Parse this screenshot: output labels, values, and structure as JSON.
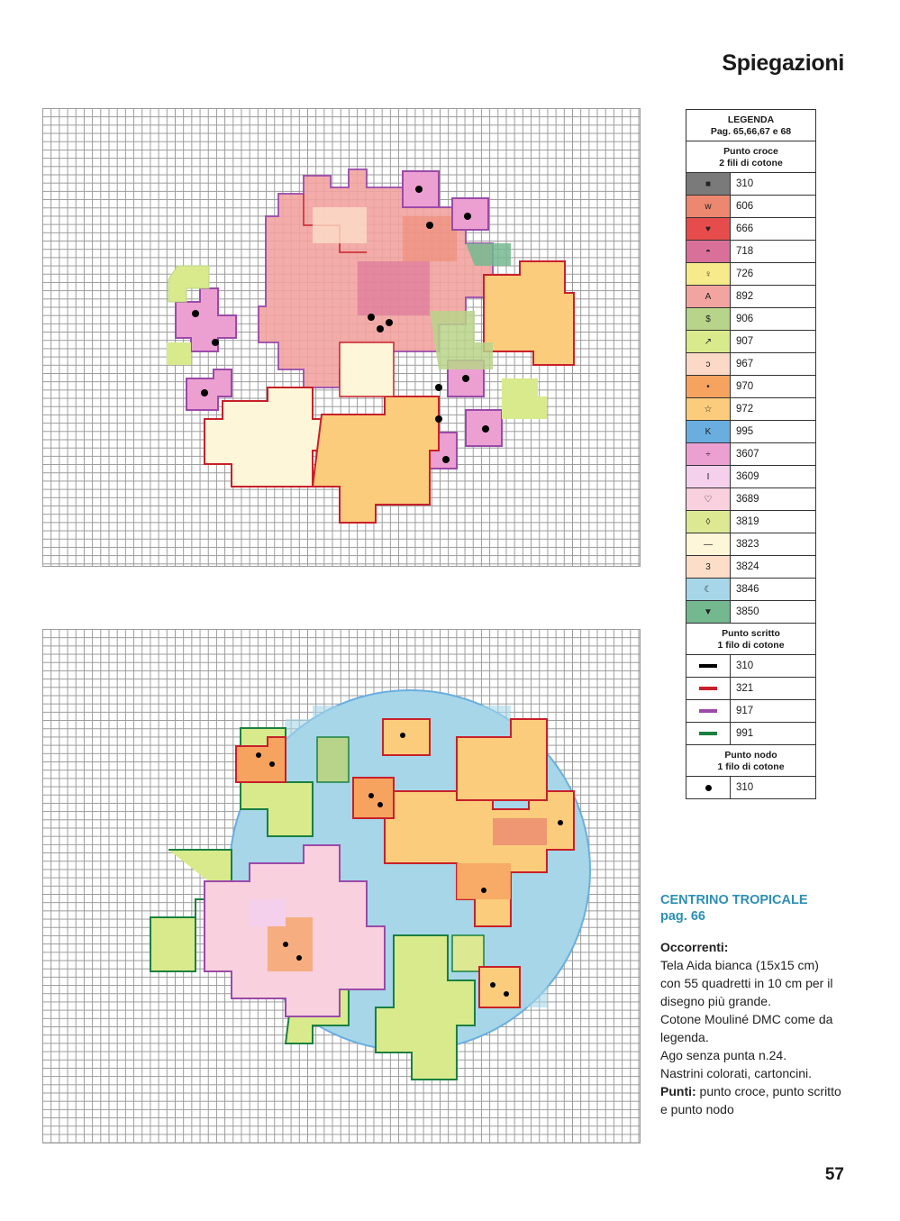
{
  "header": {
    "title": "Spiegazioni"
  },
  "legend": {
    "title": "LEGENDA",
    "pages": "Pag. 65,66,67 e 68",
    "cross_stitch": {
      "title": "Punto croce",
      "subtitle": "2 fili di cotone"
    },
    "cross_items": [
      {
        "symbol": "■",
        "code": "310",
        "color": "#7a7a7a"
      },
      {
        "symbol": "w",
        "code": "606",
        "color": "#ec8870"
      },
      {
        "symbol": "♥",
        "code": "666",
        "color": "#e74c4c"
      },
      {
        "symbol": "◓",
        "code": "718",
        "color": "#d9709a"
      },
      {
        "symbol": "♀",
        "code": "726",
        "color": "#f6ea8a"
      },
      {
        "symbol": "A",
        "code": "892",
        "color": "#f2a4a0"
      },
      {
        "symbol": "$",
        "code": "906",
        "color": "#b8d48a"
      },
      {
        "symbol": "↗",
        "code": "907",
        "color": "#d8ea8c"
      },
      {
        "symbol": "ↄ",
        "code": "967",
        "color": "#fbd9c6"
      },
      {
        "symbol": "•",
        "code": "970",
        "color": "#f6a360"
      },
      {
        "symbol": "☆",
        "code": "972",
        "color": "#fbcc7c"
      },
      {
        "symbol": "K",
        "code": "995",
        "color": "#6aaee0"
      },
      {
        "symbol": "÷",
        "code": "3607",
        "color": "#eca0d2"
      },
      {
        "symbol": "I",
        "code": "3609",
        "color": "#f4d0ec"
      },
      {
        "symbol": "♡",
        "code": "3689",
        "color": "#f8d0de"
      },
      {
        "symbol": "◊",
        "code": "3819",
        "color": "#dde892"
      },
      {
        "symbol": "—",
        "code": "3823",
        "color": "#fdf6d8"
      },
      {
        "symbol": "3",
        "code": "3824",
        "color": "#fcddc8"
      },
      {
        "symbol": "☾",
        "code": "3846",
        "color": "#a6d6e8"
      },
      {
        "symbol": "▼",
        "code": "3850",
        "color": "#74b890"
      }
    ],
    "backstitch": {
      "title": "Punto scritto",
      "subtitle": "1 filo di cotone"
    },
    "back_items": [
      {
        "code": "310",
        "color": "#000000"
      },
      {
        "code": "321",
        "color": "#c8202a"
      },
      {
        "code": "917",
        "color": "#9b4aa8"
      },
      {
        "code": "991",
        "color": "#1a8040"
      }
    ],
    "knot": {
      "title": "Punto nodo",
      "subtitle": "1 filo di cotone"
    },
    "knot_items": [
      {
        "code": "310",
        "color": "#000000"
      }
    ]
  },
  "project": {
    "name": "CENTRINO TROPICALE",
    "page": "pag. 66",
    "materials_label": "Occorrenti:",
    "materials_lines": [
      "Tela Aida bianca (15x15 cm)",
      "con 55 quadretti in 10 cm per il",
      "disegno più grande.",
      "Cotone Mouliné DMC come da",
      "legenda.",
      "Ago senza punta n.24.",
      "Nastrini colorati, cartoncini."
    ],
    "stitches_label": "Punti:",
    "stitches_line1": " punto croce, punto scritto",
    "stitches_line2": "e punto nodo"
  },
  "footer": {
    "page_number": "57"
  }
}
